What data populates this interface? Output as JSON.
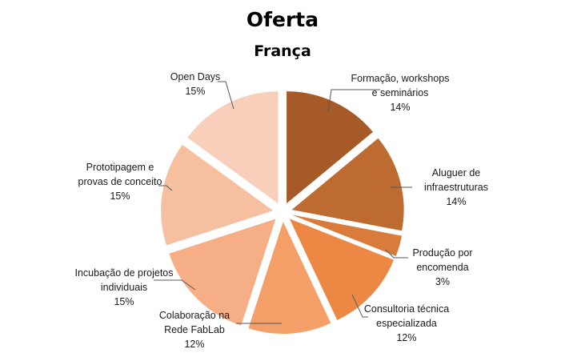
{
  "chart_data": {
    "type": "pie",
    "title": "Oferta",
    "subtitle": "França",
    "slices": [
      {
        "label_lines": [
          "Formação, workshops",
          "e seminários"
        ],
        "pct_label": "14%",
        "value": 14,
        "color": "#A65A28"
      },
      {
        "label_lines": [
          "Aluguer de",
          "infraestruturas"
        ],
        "pct_label": "14%",
        "value": 14,
        "color": "#BE6B31"
      },
      {
        "label_lines": [
          "Produção por",
          "encomenda"
        ],
        "pct_label": "3%",
        "value": 3,
        "color": "#D97B3B"
      },
      {
        "label_lines": [
          "Consultoria técnica",
          "especializada"
        ],
        "pct_label": "12%",
        "value": 12,
        "color": "#EC8843"
      },
      {
        "label_lines": [
          "Colaboração na",
          "Rede FabLab"
        ],
        "pct_label": "12%",
        "value": 12,
        "color": "#F49F67"
      },
      {
        "label_lines": [
          "Incubação de projetos",
          "individuais"
        ],
        "pct_label": "15%",
        "value": 15,
        "color": "#F5AE86"
      },
      {
        "label_lines": [
          "Prototipagem e",
          "provas de conceito"
        ],
        "pct_label": "15%",
        "value": 15,
        "color": "#F6BFA0"
      },
      {
        "label_lines": [
          "Open Days"
        ],
        "pct_label": "15%",
        "value": 15,
        "color": "#F8CFBA"
      }
    ],
    "legend": "none"
  }
}
